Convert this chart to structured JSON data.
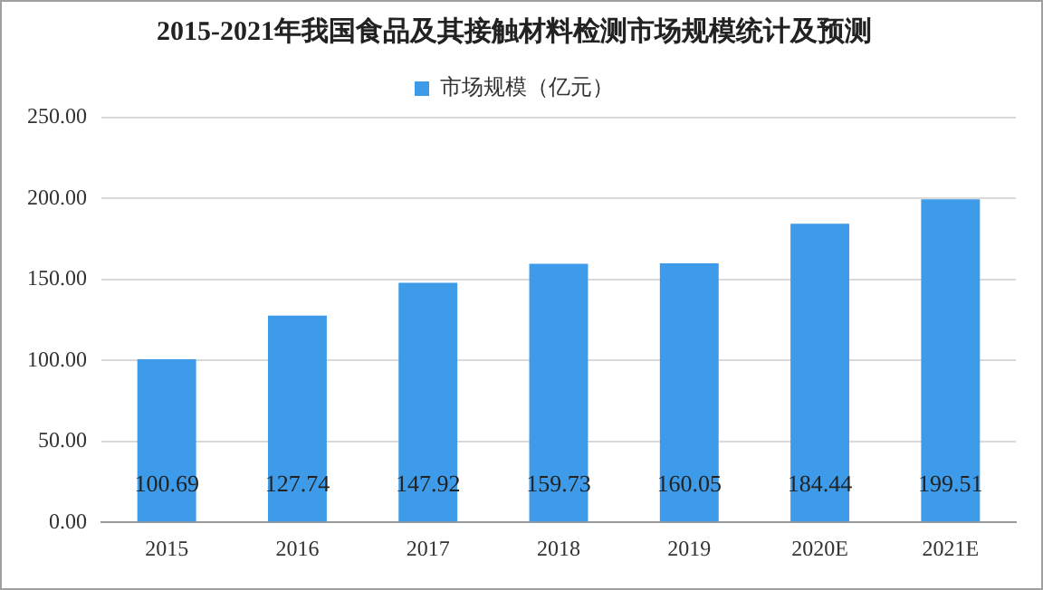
{
  "chart_data": {
    "type": "bar",
    "title": "2015-2021年我国食品及其接触材料检测市场规模统计及预测",
    "categories": [
      "2015",
      "2016",
      "2017",
      "2018",
      "2019",
      "2020E",
      "2021E"
    ],
    "series": [
      {
        "name": "市场规模（亿元）",
        "color": "#3d9be9",
        "values": [
          100.69,
          127.74,
          147.92,
          159.73,
          160.05,
          184.44,
          199.51
        ]
      }
    ],
    "ylim": [
      0,
      250
    ],
    "yticks": [
      {
        "value": 0,
        "label": "0.00"
      },
      {
        "value": 50,
        "label": "50.00"
      },
      {
        "value": 100,
        "label": "100.00"
      },
      {
        "value": 150,
        "label": "150.00"
      },
      {
        "value": 200,
        "label": "200.00"
      },
      {
        "value": 250,
        "label": "250.00"
      }
    ],
    "grid": "y",
    "legend": "top",
    "data_labels": true
  }
}
